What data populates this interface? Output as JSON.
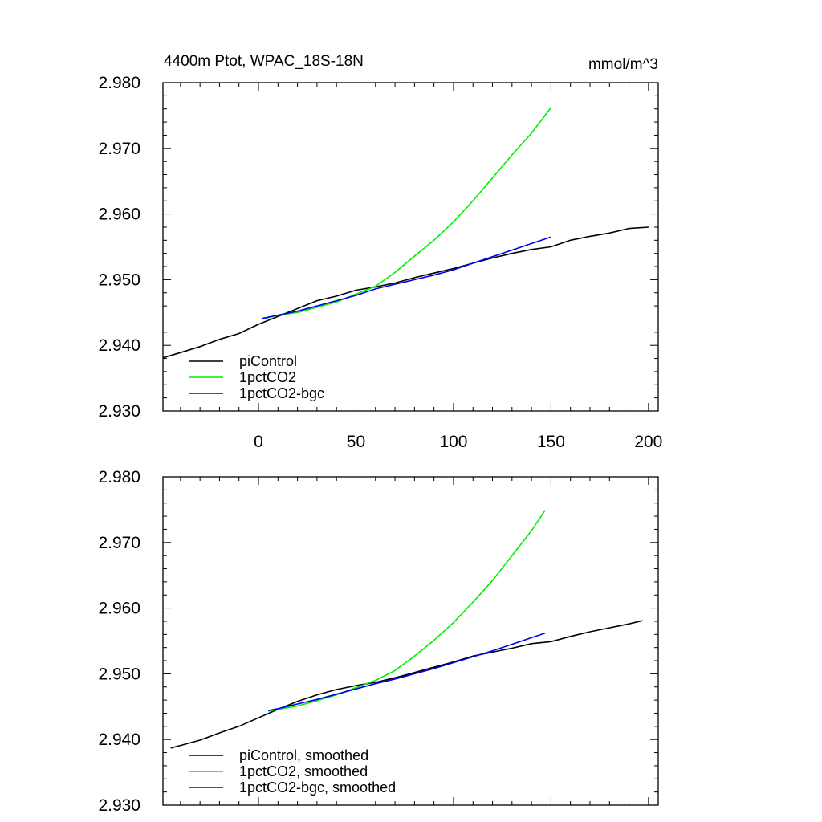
{
  "chart_data": [
    {
      "type": "line",
      "title": "4400m Ptot, WPAC_18S-18N",
      "units": "mmol/m^3",
      "xlim": [
        -49,
        205
      ],
      "ylim": [
        2.93,
        2.98
      ],
      "xticks": [
        "0",
        "50",
        "100",
        "150",
        "200"
      ],
      "yticks": [
        "2.930",
        "2.940",
        "2.950",
        "2.960",
        "2.970",
        "2.980"
      ],
      "legend_position": "bottom-left",
      "series": [
        {
          "name": "piControl",
          "color": "#000000",
          "x": [
            -49,
            -40,
            -30,
            -20,
            -10,
            0,
            10,
            20,
            30,
            40,
            50,
            60,
            70,
            80,
            90,
            100,
            110,
            120,
            130,
            140,
            150,
            160,
            170,
            180,
            190,
            200
          ],
          "y": [
            2.9381,
            2.9389,
            2.9398,
            2.9409,
            2.9418,
            2.9432,
            2.9444,
            2.9456,
            2.9468,
            2.9475,
            2.9484,
            2.9489,
            2.9495,
            2.9503,
            2.951,
            2.9517,
            2.9525,
            2.9533,
            2.954,
            2.9546,
            2.955,
            2.956,
            2.9566,
            2.9571,
            2.9578,
            2.958
          ]
        },
        {
          "name": "1pctCO2",
          "color": "#00ee00",
          "x": [
            2,
            10,
            20,
            30,
            40,
            50,
            60,
            70,
            80,
            90,
            100,
            110,
            120,
            130,
            140,
            150
          ],
          "y": [
            2.944,
            2.9446,
            2.945,
            2.9458,
            2.9466,
            2.9478,
            2.949,
            2.9511,
            2.9536,
            2.956,
            2.9588,
            2.962,
            2.9655,
            2.969,
            2.9723,
            2.9762
          ]
        },
        {
          "name": "1pctCO2-bgc",
          "color": "#0000ee",
          "x": [
            2,
            10,
            20,
            30,
            40,
            50,
            60,
            70,
            80,
            90,
            100,
            110,
            120,
            130,
            140,
            150
          ],
          "y": [
            2.9441,
            2.9446,
            2.9452,
            2.946,
            2.9468,
            2.9476,
            2.9486,
            2.9493,
            2.95,
            2.9507,
            2.9515,
            2.9525,
            2.9535,
            2.9545,
            2.9555,
            2.9565
          ]
        }
      ]
    },
    {
      "type": "line",
      "xlim": [
        -49,
        205
      ],
      "ylim": [
        2.93,
        2.98
      ],
      "yticks": [
        "2.930",
        "2.940",
        "2.950",
        "2.960",
        "2.970",
        "2.980"
      ],
      "legend_position": "bottom-left",
      "series": [
        {
          "name": "piControl, smoothed",
          "color": "#000000",
          "x": [
            -45,
            -40,
            -30,
            -20,
            -10,
            0,
            10,
            20,
            30,
            40,
            50,
            60,
            70,
            80,
            90,
            100,
            110,
            120,
            130,
            140,
            150,
            160,
            170,
            180,
            190,
            197
          ],
          "y": [
            2.9387,
            2.9391,
            2.9399,
            2.941,
            2.942,
            2.9433,
            2.9446,
            2.9458,
            2.9468,
            2.9476,
            2.9482,
            2.9487,
            2.9494,
            2.9502,
            2.951,
            2.9518,
            2.9527,
            2.9533,
            2.9539,
            2.9546,
            2.9549,
            2.9557,
            2.9564,
            2.957,
            2.9576,
            2.9581
          ]
        },
        {
          "name": "1pctCO2, smoothed",
          "color": "#00ee00",
          "x": [
            5,
            10,
            20,
            30,
            40,
            50,
            60,
            70,
            80,
            90,
            100,
            110,
            120,
            130,
            140,
            147
          ],
          "y": [
            2.9443,
            2.9446,
            2.9451,
            2.9459,
            2.9468,
            2.9479,
            2.949,
            2.9505,
            2.9527,
            2.9551,
            2.9578,
            2.9609,
            2.9642,
            2.968,
            2.9718,
            2.9749
          ]
        },
        {
          "name": "1pctCO2-bgc, smoothed",
          "color": "#0000ee",
          "x": [
            5,
            10,
            20,
            30,
            40,
            50,
            60,
            70,
            80,
            90,
            100,
            110,
            120,
            130,
            140,
            147
          ],
          "y": [
            2.9444,
            2.9447,
            2.9454,
            2.9461,
            2.9469,
            2.9477,
            2.9485,
            2.9492,
            2.95,
            2.9508,
            2.9517,
            2.9526,
            2.9535,
            2.9545,
            2.9555,
            2.9562
          ]
        }
      ]
    }
  ]
}
